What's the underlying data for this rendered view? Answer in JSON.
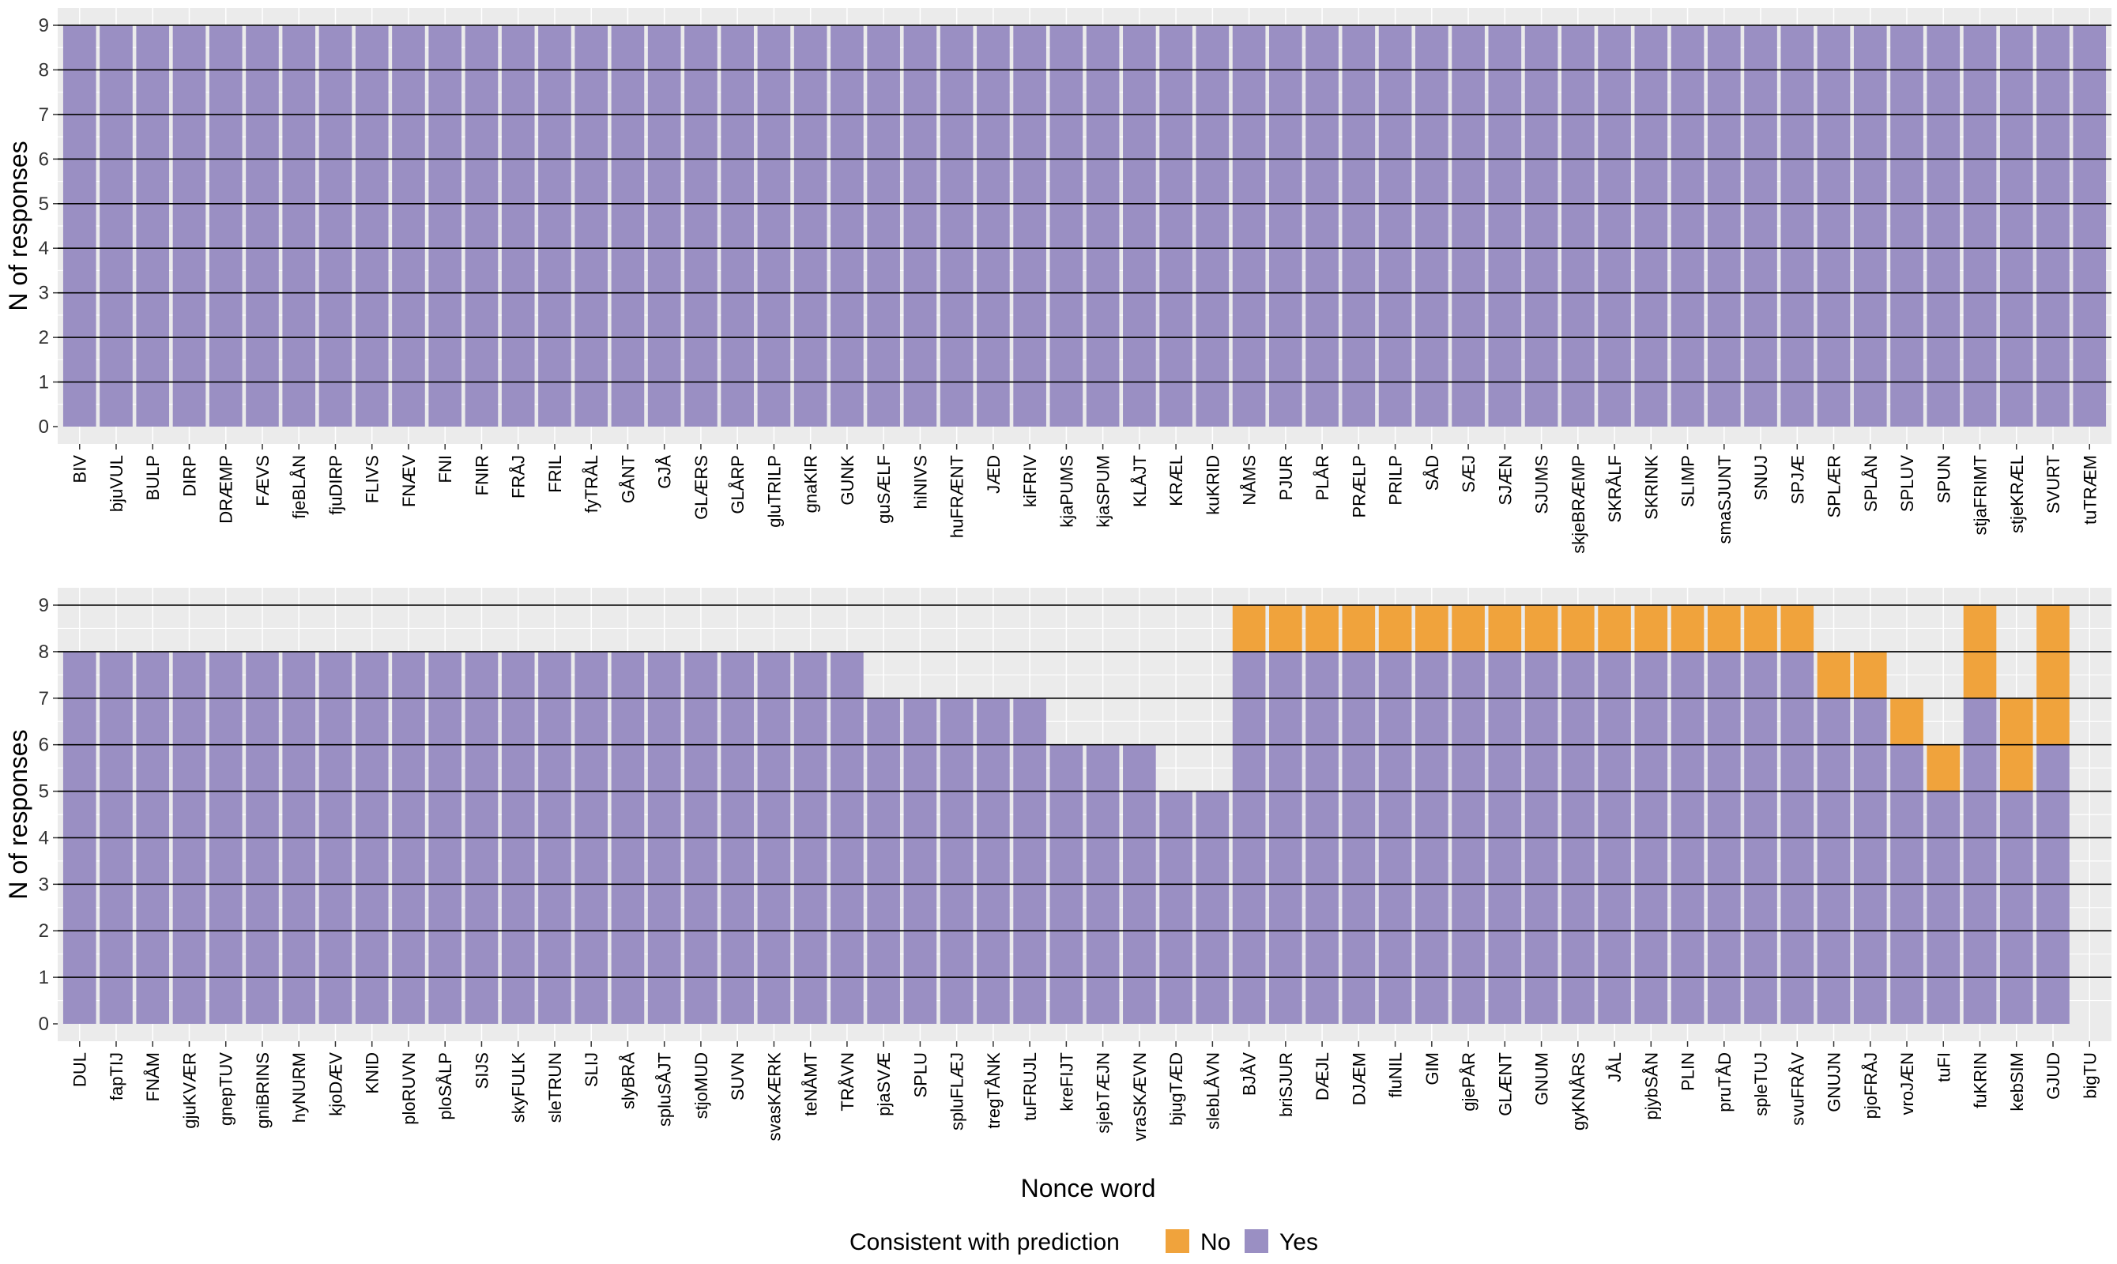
{
  "colors": {
    "yes": "#9A8FC3",
    "no": "#F0A33C",
    "panel_bg": "#EBEBEB",
    "grid": "#000000"
  },
  "legend": {
    "title": "Consistent with prediction",
    "items": [
      {
        "key": "no",
        "label": "No"
      },
      {
        "key": "yes",
        "label": "Yes"
      }
    ]
  },
  "chart_data": [
    {
      "type": "bar",
      "stacked": true,
      "ylabel": "N of responses",
      "xlabel": "",
      "ylim": [
        0,
        9
      ],
      "yticks": [
        0,
        1,
        2,
        3,
        4,
        5,
        6,
        7,
        8,
        9
      ],
      "categories": [
        "BIV",
        "bjuVUL",
        "BULP",
        "DIRP",
        "DRÆMP",
        "FÆVS",
        "fjeBLÅN",
        "fjuDIRP",
        "FLIVS",
        "FNÆV",
        "FNI",
        "FNIR",
        "FRÅJ",
        "FRIL",
        "fyTRÅL",
        "GÅNT",
        "GJÅ",
        "GLÆRS",
        "GLÅRP",
        "gluTRILP",
        "gnaKIR",
        "GUNK",
        "guSÆLF",
        "hiNIVS",
        "huFRÆNT",
        "JÆD",
        "kiFRIV",
        "kjaPUMS",
        "kjaSPUM",
        "KLÅJT",
        "KRÆL",
        "kuKRID",
        "NÅMS",
        "PJUR",
        "PLÅR",
        "PRÆLP",
        "PRILP",
        "SÅD",
        "SÆJ",
        "SJÆN",
        "SJUMS",
        "skjeBRÆMP",
        "SKRÅLF",
        "SKRINK",
        "SLIMP",
        "smaSJUNT",
        "SNUJ",
        "SPJÆ",
        "SPLÆR",
        "SPLÅN",
        "SPLUV",
        "SPUN",
        "stjaFRIMT",
        "stjeKRÆL",
        "SVURT",
        "tuTRÆM"
      ],
      "series": [
        {
          "name": "No",
          "values": [
            0,
            0,
            0,
            0,
            0,
            0,
            0,
            0,
            0,
            0,
            0,
            0,
            0,
            0,
            0,
            0,
            0,
            0,
            0,
            0,
            0,
            0,
            0,
            0,
            0,
            0,
            0,
            0,
            0,
            0,
            0,
            0,
            0,
            0,
            0,
            0,
            0,
            0,
            0,
            0,
            0,
            0,
            0,
            0,
            0,
            0,
            0,
            0,
            0,
            0,
            0,
            0,
            0,
            0,
            0,
            0
          ]
        },
        {
          "name": "Yes",
          "values": [
            9,
            9,
            9,
            9,
            9,
            9,
            9,
            9,
            9,
            9,
            9,
            9,
            9,
            9,
            9,
            9,
            9,
            9,
            9,
            9,
            9,
            9,
            9,
            9,
            9,
            9,
            9,
            9,
            9,
            9,
            9,
            9,
            9,
            9,
            9,
            9,
            9,
            9,
            9,
            9,
            9,
            9,
            9,
            9,
            9,
            9,
            9,
            9,
            9,
            9,
            9,
            9,
            9,
            9,
            9,
            9
          ]
        }
      ]
    },
    {
      "type": "bar",
      "stacked": true,
      "ylabel": "N of responses",
      "xlabel": "Nonce word",
      "ylim": [
        0,
        9
      ],
      "yticks": [
        0,
        1,
        2,
        3,
        4,
        5,
        6,
        7,
        8,
        9
      ],
      "categories": [
        "DUL",
        "fapTIJ",
        "FNÅM",
        "gjuKVÆR",
        "gnepTUV",
        "gniBRINS",
        "hyNURM",
        "kjoDÆV",
        "KNID",
        "ploRUVN",
        "ploSÅLP",
        "SIJS",
        "skyFULK",
        "sleTRUN",
        "SLIJ",
        "slyBRÅ",
        "spluSÅJT",
        "stjoMUD",
        "SUVN",
        "svasKÆRK",
        "teNÅMT",
        "TRÅVN",
        "pjaSVÆ",
        "SPLU",
        "spluFLÆJ",
        "tregTÅNK",
        "tuFRUJL",
        "kreFIJT",
        "sjebTÆJN",
        "vraSKÆVN",
        "bjugTÆD",
        "slebLÅVN",
        "BJÅV",
        "briSJUR",
        "DÆJL",
        "DJÆM",
        "fluNIL",
        "GIM",
        "gjePÅR",
        "GLÆNT",
        "GNUM",
        "gyKNÅRS",
        "JÅL",
        "pjybSÅN",
        "PLIN",
        "pruTÅD",
        "spleTUJ",
        "svuFRÅV",
        "GNUJN",
        "pjoFRÅJ",
        "vroJÆN",
        "tuFI",
        "fuKRIN",
        "kebSIM",
        "GJUD",
        "bigTU"
      ],
      "series": [
        {
          "name": "No",
          "values": [
            0,
            0,
            0,
            0,
            0,
            0,
            0,
            0,
            0,
            0,
            0,
            0,
            0,
            0,
            0,
            0,
            0,
            0,
            0,
            0,
            0,
            0,
            0,
            0,
            0,
            0,
            0,
            0,
            0,
            0,
            0,
            0,
            1,
            1,
            1,
            1,
            1,
            1,
            1,
            1,
            1,
            1,
            1,
            1,
            1,
            1,
            1,
            1,
            1,
            1,
            1,
            1,
            2,
            2,
            3,
            0
          ]
        },
        {
          "name": "Yes",
          "values": [
            8,
            8,
            8,
            8,
            8,
            8,
            8,
            8,
            8,
            8,
            8,
            8,
            8,
            8,
            8,
            8,
            8,
            8,
            8,
            8,
            8,
            8,
            7,
            7,
            7,
            7,
            7,
            6,
            6,
            6,
            5,
            5,
            8,
            8,
            8,
            8,
            8,
            8,
            8,
            8,
            8,
            8,
            8,
            8,
            8,
            8,
            8,
            8,
            7,
            7,
            6,
            5,
            7,
            5,
            6,
            0
          ]
        }
      ]
    }
  ]
}
